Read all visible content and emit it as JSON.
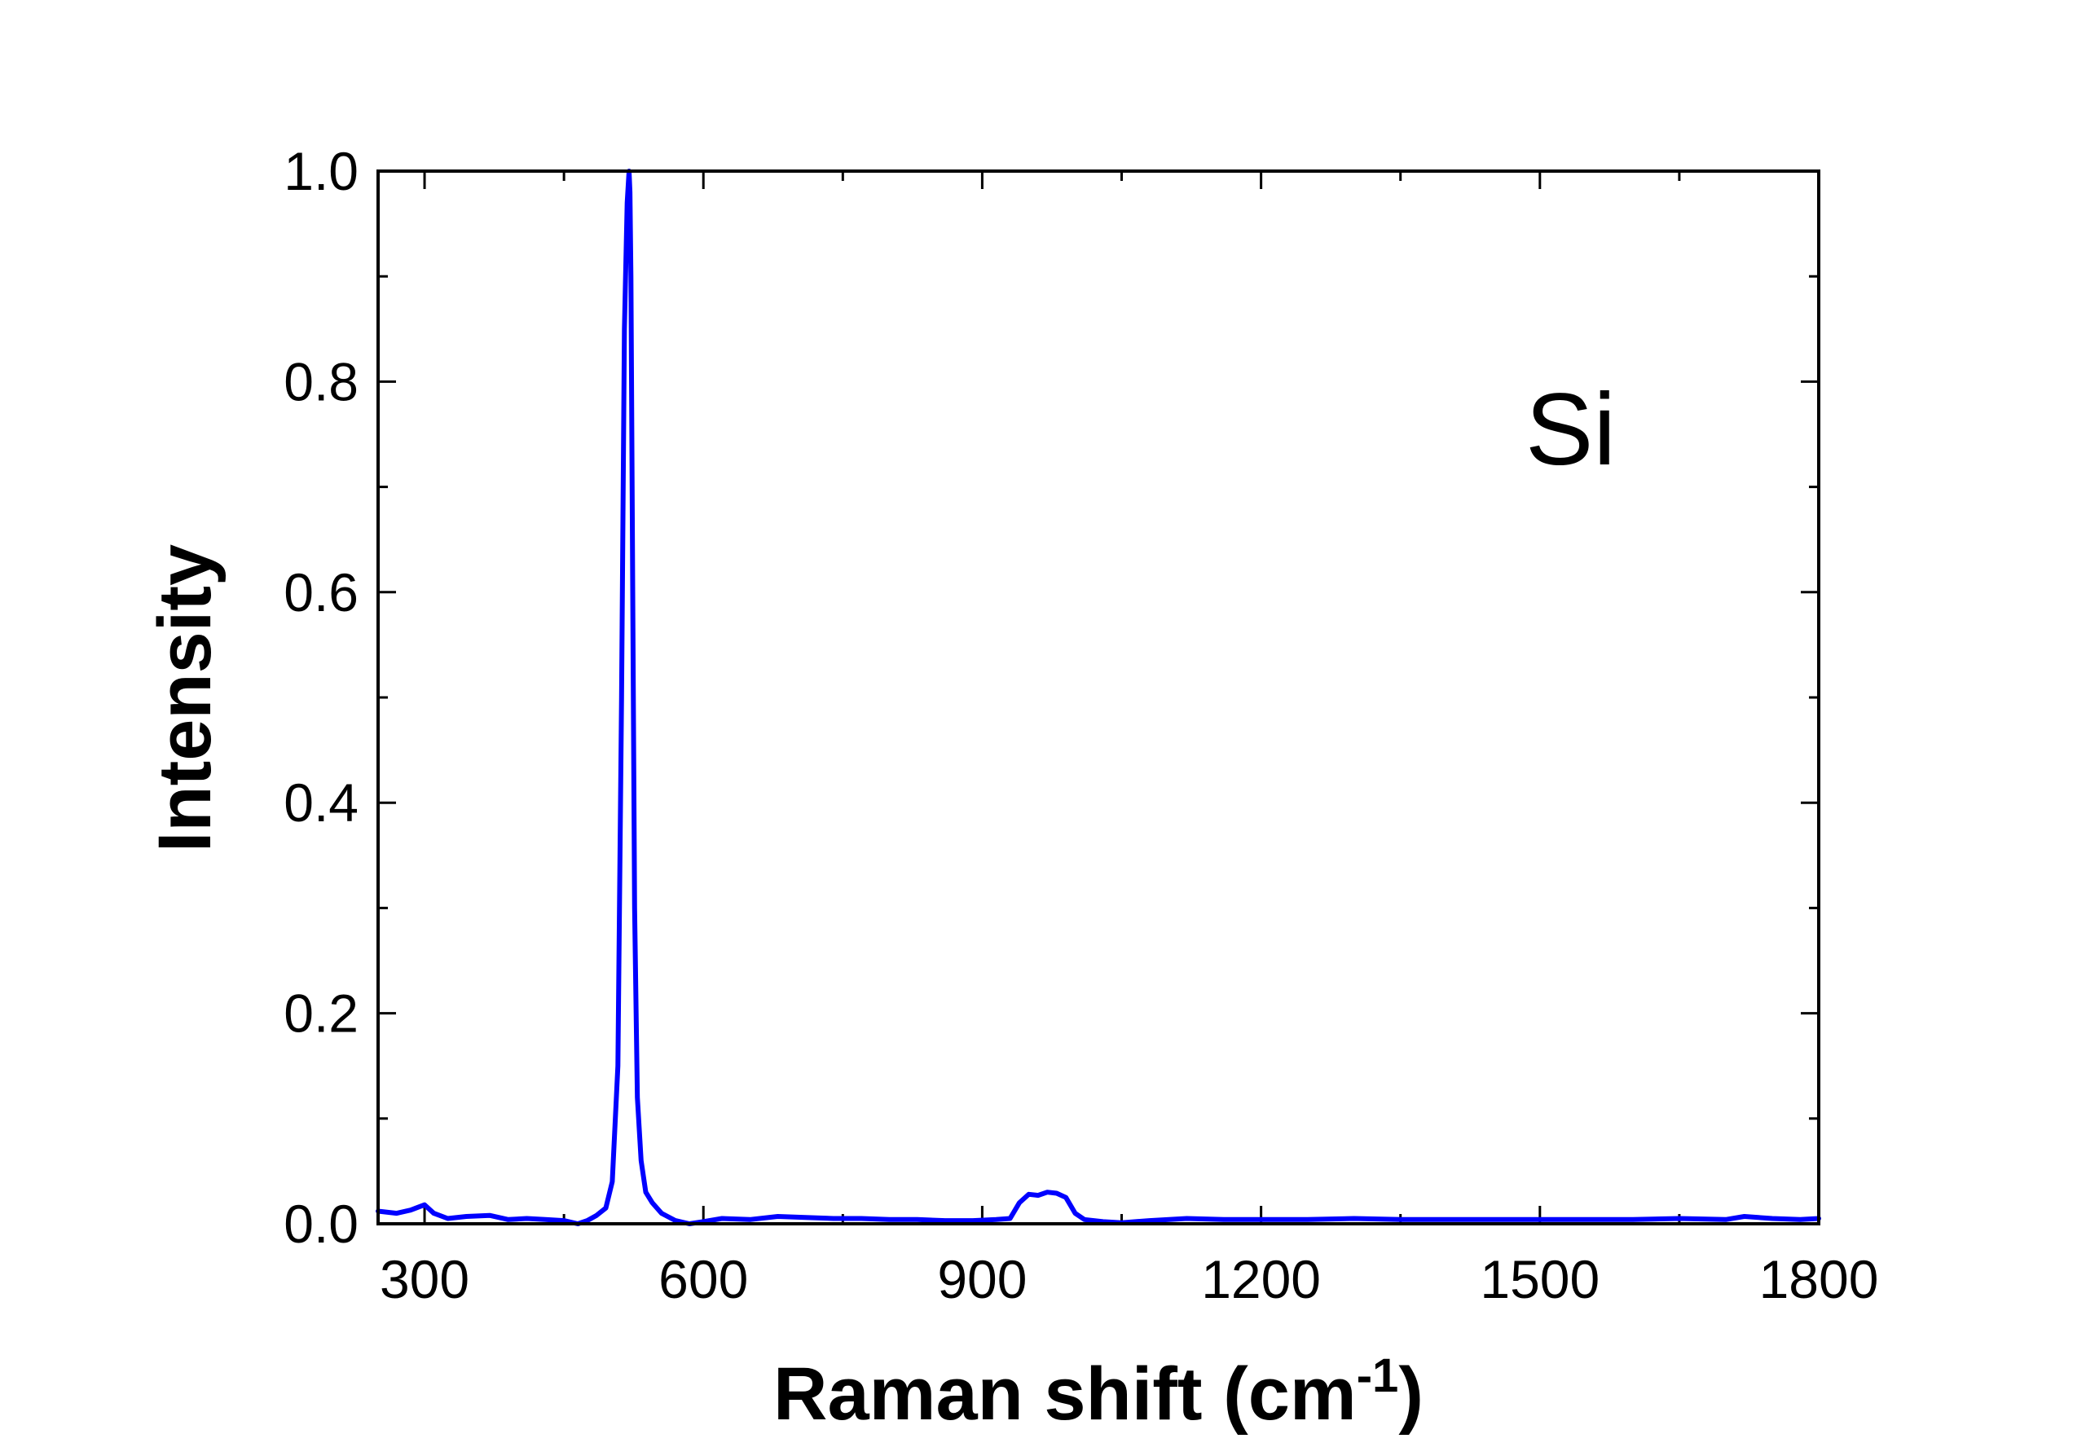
{
  "chart_data": {
    "type": "line",
    "title": "",
    "xlabel": "Raman shift (cm",
    "xlabel_superscript": "-1",
    "xlabel_suffix": ")",
    "ylabel": "Intensity",
    "xlim": [
      250,
      1800
    ],
    "ylim": [
      0.0,
      1.0
    ],
    "x_ticks": [
      300,
      600,
      900,
      1200,
      1500,
      1800
    ],
    "x_tick_labels": [
      "300",
      "600",
      "900",
      "1200",
      "1500",
      "1800"
    ],
    "y_ticks": [
      0.0,
      0.2,
      0.4,
      0.6,
      0.8,
      1.0
    ],
    "y_tick_labels": [
      "0.0",
      "0.2",
      "0.4",
      "0.6",
      "0.8",
      "1.0"
    ],
    "grid": false,
    "annotation": "Si",
    "series": [
      {
        "color": "#0000ff",
        "x": [
          250,
          270,
          285,
          300,
          310,
          325,
          345,
          370,
          390,
          410,
          430,
          450,
          465,
          475,
          485,
          495,
          502,
          508,
          512,
          515,
          518,
          520,
          521,
          522,
          524,
          526,
          529,
          533,
          538,
          545,
          555,
          570,
          585,
          600,
          620,
          650,
          680,
          710,
          740,
          770,
          800,
          830,
          860,
          890,
          915,
          930,
          940,
          950,
          960,
          970,
          980,
          990,
          1000,
          1010,
          1030,
          1050,
          1080,
          1120,
          1160,
          1200,
          1250,
          1300,
          1350,
          1400,
          1450,
          1500,
          1550,
          1600,
          1650,
          1700,
          1720,
          1750,
          1780,
          1800
        ],
        "y": [
          0.012,
          0.01,
          0.013,
          0.018,
          0.01,
          0.005,
          0.007,
          0.008,
          0.004,
          0.005,
          0.004,
          0.003,
          0.0,
          0.003,
          0.008,
          0.015,
          0.04,
          0.15,
          0.5,
          0.85,
          0.97,
          1.0,
          0.98,
          0.9,
          0.6,
          0.3,
          0.12,
          0.06,
          0.03,
          0.02,
          0.01,
          0.003,
          0.0,
          0.002,
          0.005,
          0.004,
          0.007,
          0.006,
          0.005,
          0.005,
          0.004,
          0.004,
          0.003,
          0.003,
          0.004,
          0.005,
          0.02,
          0.028,
          0.027,
          0.03,
          0.029,
          0.025,
          0.01,
          0.004,
          0.002,
          0.001,
          0.003,
          0.005,
          0.004,
          0.004,
          0.004,
          0.005,
          0.004,
          0.004,
          0.004,
          0.004,
          0.004,
          0.004,
          0.005,
          0.004,
          0.007,
          0.005,
          0.004,
          0.005
        ]
      }
    ]
  }
}
